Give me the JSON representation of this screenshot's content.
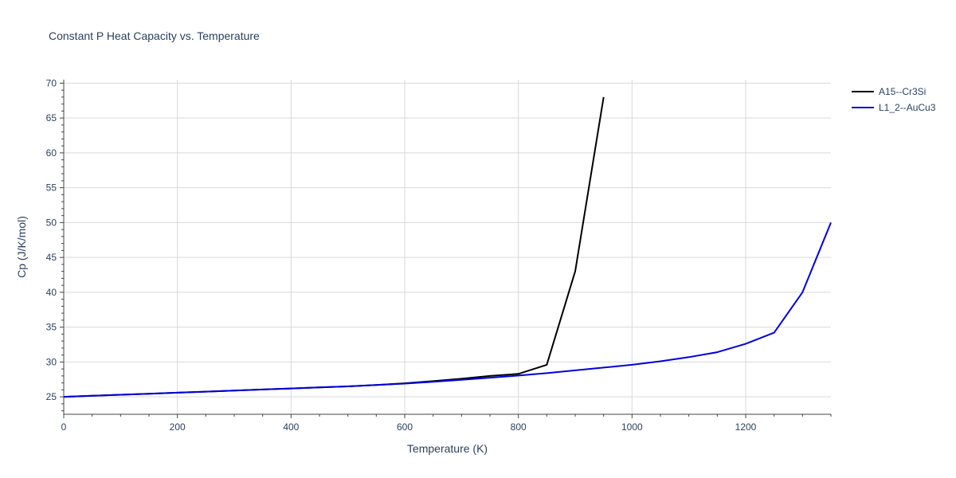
{
  "chart_data": {
    "type": "line",
    "title": "Constant P Heat Capacity vs. Temperature",
    "xlabel": "Temperature (K)",
    "ylabel": "Cp (J/K/mol)",
    "xlim": [
      0,
      1350
    ],
    "ylim": [
      22.5,
      70.5
    ],
    "x_ticks": [
      0,
      200,
      400,
      600,
      800,
      1000,
      1200
    ],
    "y_ticks": [
      25,
      30,
      35,
      40,
      45,
      50,
      55,
      60,
      65,
      70
    ],
    "grid": true,
    "legend_position": "top-right",
    "series": [
      {
        "name": "A15--Cr3Si",
        "color": "#000000",
        "x": [
          0,
          50,
          100,
          150,
          200,
          250,
          300,
          350,
          400,
          450,
          500,
          550,
          600,
          650,
          700,
          750,
          800,
          850,
          900,
          950
        ],
        "y": [
          25.0,
          25.15,
          25.3,
          25.45,
          25.6,
          25.75,
          25.9,
          26.05,
          26.2,
          26.35,
          26.5,
          26.7,
          26.95,
          27.25,
          27.6,
          28.0,
          28.3,
          29.6,
          43.0,
          68.0
        ]
      },
      {
        "name": "L1_2--AuCu3",
        "color": "#0000dd",
        "x": [
          0,
          50,
          100,
          150,
          200,
          250,
          300,
          350,
          400,
          450,
          500,
          550,
          600,
          650,
          700,
          750,
          800,
          850,
          900,
          950,
          1000,
          1050,
          1100,
          1150,
          1200,
          1250,
          1300,
          1350
        ],
        "y": [
          25.0,
          25.15,
          25.3,
          25.45,
          25.6,
          25.75,
          25.9,
          26.05,
          26.2,
          26.35,
          26.5,
          26.7,
          26.9,
          27.15,
          27.45,
          27.75,
          28.05,
          28.4,
          28.8,
          29.2,
          29.6,
          30.1,
          30.7,
          31.4,
          32.6,
          34.2,
          40.0,
          50.0
        ]
      }
    ]
  }
}
